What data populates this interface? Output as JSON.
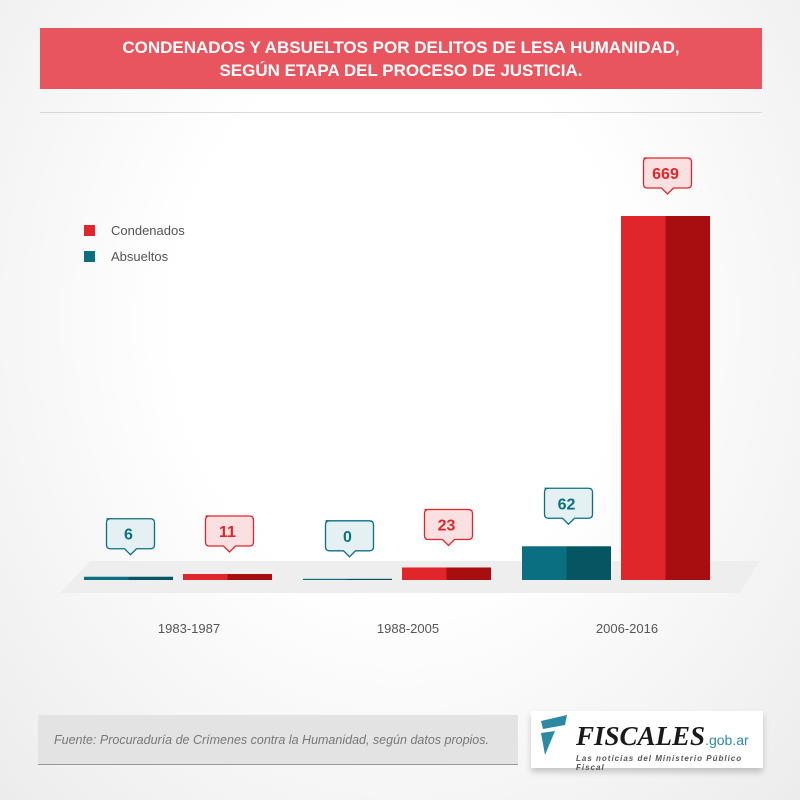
{
  "title": {
    "line1": "CONDENADOS Y ABSUELTOS POR DELITOS DE LESA HUMANIDAD,",
    "line2": "SEGÚN ETAPA DEL PROCESO DE JUSTICIA."
  },
  "chart_data": {
    "type": "bar",
    "categories": [
      "1983-1987",
      "1988-2005",
      "2006-2016"
    ],
    "series": [
      {
        "name": "Absueltos",
        "values": [
          6,
          0,
          62
        ],
        "color": "#0b6f82"
      },
      {
        "name": "Condenados",
        "values": [
          11,
          23,
          669
        ],
        "color": "#e0262a"
      }
    ],
    "legend": [
      "Condenados",
      "Absueltos"
    ],
    "legend_position": "top-left",
    "ylim": [
      0,
      669
    ]
  },
  "footer": {
    "source": "Fuente: Procuraduría de Crímenes contra la Humanidad, según datos propios."
  },
  "logo": {
    "name": "FISCALES",
    "domain": ".gob.ar",
    "tagline": "Las noticias del Ministerio Público Fiscal"
  }
}
